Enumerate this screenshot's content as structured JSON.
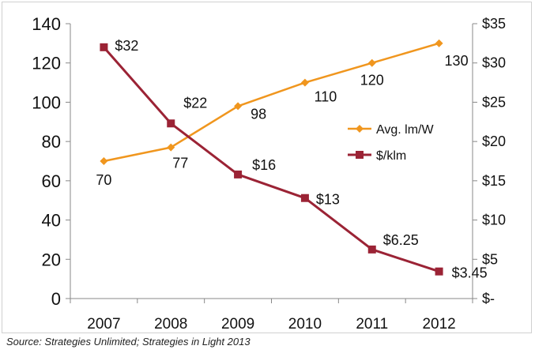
{
  "chart_data": {
    "type": "line",
    "categories": [
      "2007",
      "2008",
      "2009",
      "2010",
      "2011",
      "2012"
    ],
    "series": [
      {
        "name": "Avg. lm/W",
        "axis": "left",
        "color": "#f0961e",
        "marker": "diamond",
        "values": [
          70,
          77,
          98,
          110,
          120,
          130
        ],
        "labels": [
          "70",
          "77",
          "98",
          "110",
          "120",
          "130"
        ]
      },
      {
        "name": "$/klm",
        "axis": "right",
        "color": "#9b2335",
        "marker": "square",
        "values": [
          32,
          22.3,
          15.8,
          12.8,
          6.25,
          3.45
        ],
        "labels": [
          "$32",
          "$22",
          "$16",
          "$13",
          "$6.25",
          "$3.45"
        ]
      }
    ],
    "y_left": {
      "min": 0,
      "max": 140,
      "ticks": [
        "0",
        "20",
        "40",
        "60",
        "80",
        "100",
        "120",
        "140"
      ]
    },
    "y_right": {
      "min": 0,
      "max": 35,
      "ticks": [
        "$-",
        "$5",
        "$10",
        "$15",
        "$20",
        "$25",
        "$30",
        "$35"
      ]
    },
    "legend": "right",
    "grid": false
  },
  "source": "Source: Strategies Unlimited; Strategies in Light 2013"
}
